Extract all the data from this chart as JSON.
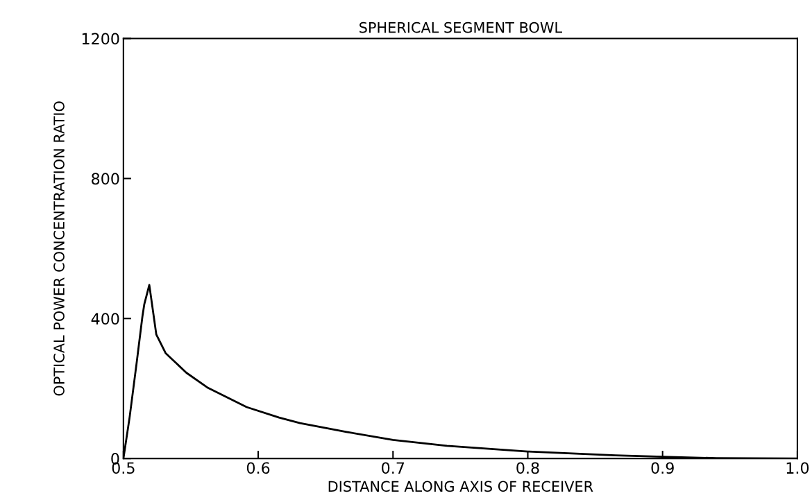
{
  "chart_data": {
    "type": "line",
    "title": "SPHERICAL SEGMENT BOWL",
    "xlabel": "DISTANCE ALONG AXIS OF RECEIVER",
    "ylabel": "OPTICAL POWER CONCENTRATION RATIO",
    "x": [
      0.5,
      0.5046,
      0.5098,
      0.5141,
      0.5155,
      0.5192,
      0.5244,
      0.5313,
      0.5467,
      0.5622,
      0.5914,
      0.6155,
      0.631,
      0.6655,
      0.7,
      0.74,
      0.8,
      0.865,
      0.9,
      0.94,
      1.0
    ],
    "values": [
      0,
      118,
      273,
      406,
      441,
      496,
      354,
      301,
      245,
      203,
      147,
      117,
      101,
      76,
      53,
      36,
      20,
      9,
      5,
      1,
      0
    ],
    "color": "#000000",
    "xlim": [
      0.5,
      1.0
    ],
    "ylim": [
      0,
      1200
    ],
    "xticks": [
      0.5,
      0.6,
      0.7,
      0.8,
      0.9,
      {
        "value": 1.0,
        "label": "1.0"
      }
    ],
    "yticks": [
      0,
      400,
      800,
      1200
    ],
    "grid": false,
    "legend": false,
    "marker": "none",
    "line_style": "solid"
  }
}
